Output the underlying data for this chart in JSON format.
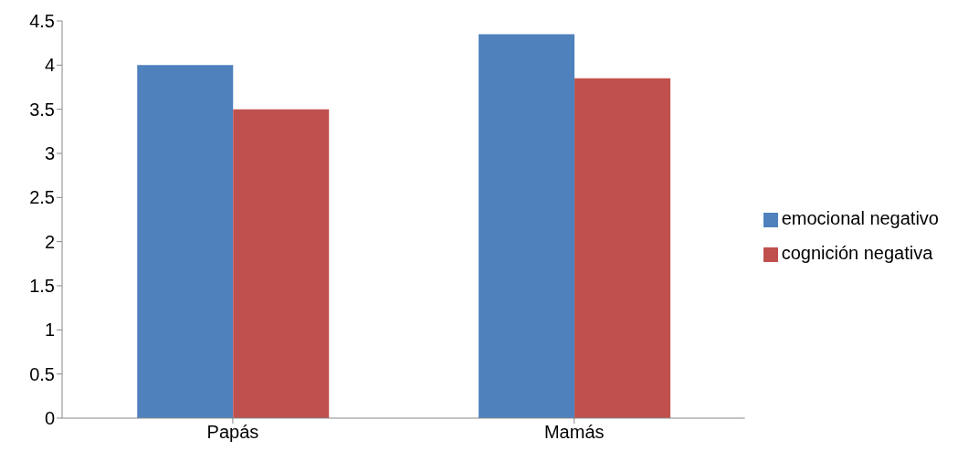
{
  "chart_data": {
    "type": "bar",
    "categories": [
      "Papás",
      "Mamás"
    ],
    "series": [
      {
        "name": "emocional negativo",
        "color": "#4f81bd",
        "values": [
          4.0,
          4.35
        ]
      },
      {
        "name": "cognición negativa",
        "color": "#c0504d",
        "values": [
          3.5,
          3.85
        ]
      }
    ],
    "ylim": [
      0,
      4.5
    ],
    "yticks": [
      0,
      0.5,
      1,
      1.5,
      2,
      2.5,
      3,
      3.5,
      4,
      4.5
    ],
    "legend": "right"
  }
}
